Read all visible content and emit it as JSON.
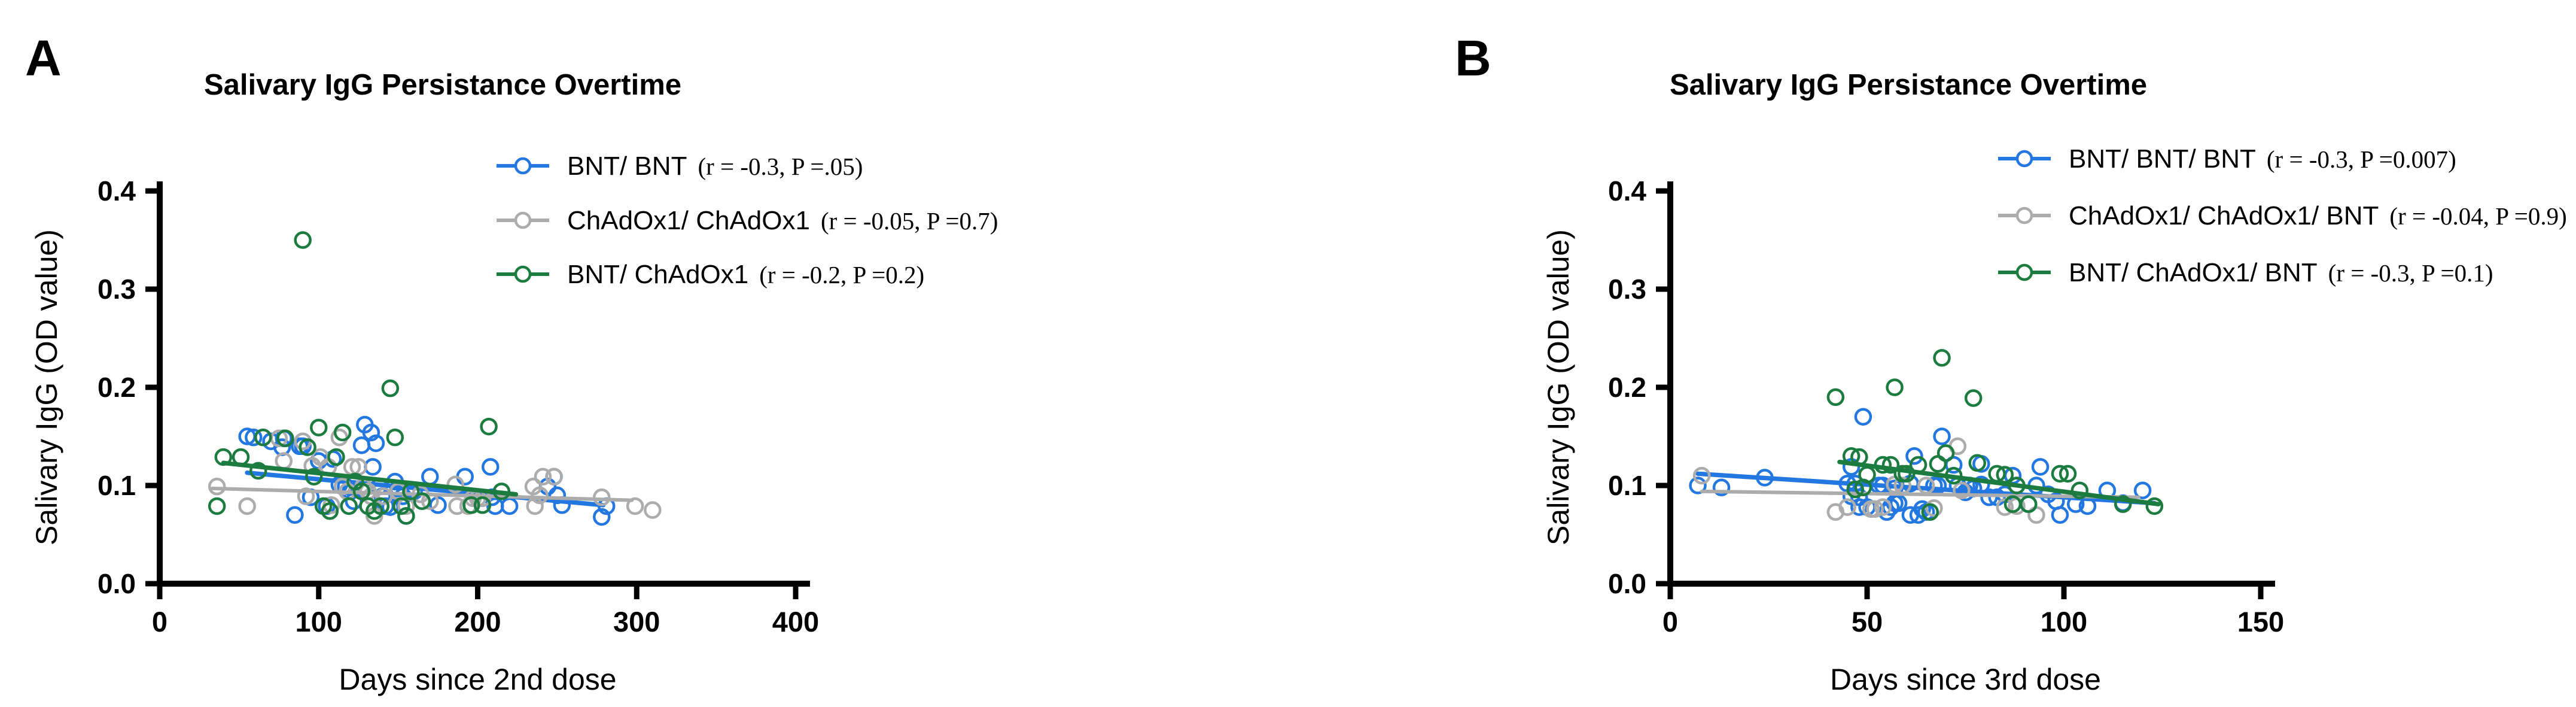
{
  "figure": {
    "background": "#ffffff",
    "text_color": "#000000",
    "axis_color": "#000000"
  },
  "chart_data": [
    {
      "type": "scatter",
      "panel_label": "A",
      "title": "Salivary IgG Persistance Overtime",
      "xlabel": "Days since 2nd dose",
      "ylabel": "Salivary IgG (OD value)",
      "xlim": [
        0,
        400
      ],
      "ylim": [
        0.0,
        0.4
      ],
      "xticks": {
        "values": [
          0,
          100,
          200,
          300,
          400
        ],
        "labels": [
          "0",
          "100",
          "200",
          "300",
          "400"
        ]
      },
      "yticks": {
        "values": [
          0.0,
          0.1,
          0.2,
          0.3,
          0.4
        ],
        "labels": [
          "0.0",
          "0.1",
          "0.2",
          "0.3",
          "0.4"
        ]
      },
      "grid": false,
      "legend_position": "upper-right",
      "series": [
        {
          "name": "BNT/ BNT",
          "stats": "(r = -0.3, P =.05)",
          "color": "#2277E0",
          "marker": "open-circle",
          "trend": [
            [
              55,
              0.113
            ],
            [
              279,
              0.08
            ]
          ],
          "points": [
            [
              55,
              0.15
            ],
            [
              59,
              0.149
            ],
            [
              70,
              0.145
            ],
            [
              77,
              0.139
            ],
            [
              78,
              0.148
            ],
            [
              85,
              0.07
            ],
            [
              88,
              0.14
            ],
            [
              90,
              0.14
            ],
            [
              95,
              0.088
            ],
            [
              100,
              0.125
            ],
            [
              105,
              0.079
            ],
            [
              109,
              0.127
            ],
            [
              113,
              0.101
            ],
            [
              117,
              0.099
            ],
            [
              120,
              0.094
            ],
            [
              122,
              0.084
            ],
            [
              127,
              0.141
            ],
            [
              129,
              0.162
            ],
            [
              133,
              0.154
            ],
            [
              134,
              0.119
            ],
            [
              136,
              0.143
            ],
            [
              138,
              0.099
            ],
            [
              140,
              0.089
            ],
            [
              142,
              0.079
            ],
            [
              145,
              0.078
            ],
            [
              148,
              0.104
            ],
            [
              150,
              0.097
            ],
            [
              153,
              0.089
            ],
            [
              155,
              0.069
            ],
            [
              160,
              0.094
            ],
            [
              170,
              0.109
            ],
            [
              175,
              0.08
            ],
            [
              192,
              0.109
            ],
            [
              208,
              0.119
            ],
            [
              209,
              0.088
            ],
            [
              211,
              0.079
            ],
            [
              220,
              0.079
            ],
            [
              244,
              0.099
            ],
            [
              248,
              0.109
            ],
            [
              250,
              0.09
            ],
            [
              253,
              0.08
            ],
            [
              278,
              0.068
            ],
            [
              281,
              0.079
            ]
          ]
        },
        {
          "name": "ChAdOx1/ ChAdOx1",
          "stats": "(r = -0.05, P =0.7)",
          "color": "#ACACAC",
          "marker": "open-circle",
          "trend": [
            [
              33,
              0.097
            ],
            [
              297,
              0.085
            ]
          ],
          "points": [
            [
              36,
              0.099
            ],
            [
              55,
              0.079
            ],
            [
              75,
              0.148
            ],
            [
              78,
              0.125
            ],
            [
              90,
              0.145
            ],
            [
              92,
              0.089
            ],
            [
              96,
              0.12
            ],
            [
              101,
              0.129
            ],
            [
              106,
              0.119
            ],
            [
              108,
              0.08
            ],
            [
              113,
              0.149
            ],
            [
              115,
              0.099
            ],
            [
              118,
              0.094
            ],
            [
              121,
              0.119
            ],
            [
              125,
              0.119
            ],
            [
              128,
              0.099
            ],
            [
              131,
              0.094
            ],
            [
              133,
              0.089
            ],
            [
              135,
              0.069
            ],
            [
              139,
              0.079
            ],
            [
              141,
              0.089
            ],
            [
              150,
              0.094
            ],
            [
              155,
              0.079
            ],
            [
              164,
              0.091
            ],
            [
              170,
              0.084
            ],
            [
              186,
              0.101
            ],
            [
              187,
              0.079
            ],
            [
              194,
              0.079
            ],
            [
              197,
              0.087
            ],
            [
              200,
              0.087
            ],
            [
              203,
              0.087
            ],
            [
              235,
              0.099
            ],
            [
              236,
              0.079
            ],
            [
              239,
              0.09
            ],
            [
              241,
              0.109
            ],
            [
              248,
              0.109
            ],
            [
              278,
              0.088
            ],
            [
              299,
              0.079
            ],
            [
              310,
              0.075
            ]
          ]
        },
        {
          "name": "BNT/ ChAdOx1",
          "stats": "(r = -0.2, P =0.2)",
          "color": "#1C7C40",
          "marker": "open-circle",
          "trend": [
            [
              40,
              0.123
            ],
            [
              224,
              0.091
            ]
          ],
          "points": [
            [
              36,
              0.079
            ],
            [
              40,
              0.129
            ],
            [
              51,
              0.129
            ],
            [
              62,
              0.115
            ],
            [
              65,
              0.149
            ],
            [
              79,
              0.148
            ],
            [
              90,
              0.35
            ],
            [
              93,
              0.139
            ],
            [
              97,
              0.109
            ],
            [
              100,
              0.159
            ],
            [
              103,
              0.079
            ],
            [
              107,
              0.074
            ],
            [
              111,
              0.129
            ],
            [
              115,
              0.154
            ],
            [
              119,
              0.079
            ],
            [
              123,
              0.104
            ],
            [
              127,
              0.094
            ],
            [
              131,
              0.079
            ],
            [
              135,
              0.074
            ],
            [
              139,
              0.079
            ],
            [
              145,
              0.199
            ],
            [
              148,
              0.149
            ],
            [
              152,
              0.079
            ],
            [
              155,
              0.069
            ],
            [
              158,
              0.094
            ],
            [
              165,
              0.084
            ],
            [
              196,
              0.08
            ],
            [
              203,
              0.08
            ],
            [
              207,
              0.16
            ],
            [
              215,
              0.094
            ]
          ]
        }
      ]
    },
    {
      "type": "scatter",
      "panel_label": "B",
      "title": "Salivary IgG Persistance Overtime",
      "xlabel": "Days since 3rd dose",
      "ylabel": "Salivary IgG (OD value)",
      "xlim": [
        0,
        150
      ],
      "ylim": [
        0.0,
        0.4
      ],
      "xticks": {
        "values": [
          0,
          50,
          100,
          150
        ],
        "labels": [
          "0",
          "50",
          "100",
          "150"
        ]
      },
      "yticks": {
        "values": [
          0.0,
          0.1,
          0.2,
          0.3,
          0.4
        ],
        "labels": [
          "0.0",
          "0.1",
          "0.2",
          "0.3",
          "0.4"
        ]
      },
      "grid": false,
      "legend_position": "upper-right",
      "series": [
        {
          "name": "BNT/ BNT/ BNT",
          "stats": "(r = -0.3, P =0.007)",
          "color": "#2277E0",
          "marker": "open-circle",
          "trend": [
            [
              7,
              0.112
            ],
            [
              123,
              0.082
            ]
          ],
          "points": [
            [
              7,
              0.1
            ],
            [
              13,
              0.098
            ],
            [
              24,
              0.108
            ],
            [
              45,
              0.102
            ],
            [
              46,
              0.119
            ],
            [
              46,
              0.089
            ],
            [
              47,
              0.102
            ],
            [
              48,
              0.088
            ],
            [
              48,
              0.078
            ],
            [
              49,
              0.17
            ],
            [
              50,
              0.078
            ],
            [
              53,
              0.1
            ],
            [
              54,
              0.1
            ],
            [
              55,
              0.073
            ],
            [
              56,
              0.078
            ],
            [
              57,
              0.097
            ],
            [
              57,
              0.082
            ],
            [
              58,
              0.082
            ],
            [
              61,
              0.102
            ],
            [
              61,
              0.07
            ],
            [
              62,
              0.13
            ],
            [
              63,
              0.07
            ],
            [
              64,
              0.076
            ],
            [
              65,
              0.073
            ],
            [
              67,
              0.1
            ],
            [
              68,
              0.1
            ],
            [
              69,
              0.15
            ],
            [
              72,
              0.121
            ],
            [
              73,
              0.1
            ],
            [
              75,
              0.093
            ],
            [
              76,
              0.1
            ],
            [
              77,
              0.097
            ],
            [
              79,
              0.122
            ],
            [
              79,
              0.101
            ],
            [
              81,
              0.088
            ],
            [
              83,
              0.088
            ],
            [
              85,
              0.091
            ],
            [
              87,
              0.11
            ],
            [
              88,
              0.1
            ],
            [
              91,
              0.081
            ],
            [
              93,
              0.1
            ],
            [
              94,
              0.119
            ],
            [
              96,
              0.091
            ],
            [
              98,
              0.084
            ],
            [
              99,
              0.07
            ],
            [
              103,
              0.081
            ],
            [
              106,
              0.079
            ],
            [
              111,
              0.095
            ],
            [
              115,
              0.082
            ],
            [
              120,
              0.095
            ]
          ]
        },
        {
          "name": "ChAdOx1/ ChAdOx1/ BNT",
          "stats": "(r = -0.04, P =0.9)",
          "color": "#ACACAC",
          "marker": "open-circle",
          "trend": [
            [
              8,
              0.094
            ],
            [
              119,
              0.088
            ]
          ],
          "points": [
            [
              8,
              0.11
            ],
            [
              42,
              0.073
            ],
            [
              45,
              0.078
            ],
            [
              51,
              0.076
            ],
            [
              52,
              0.076
            ],
            [
              54,
              0.078
            ],
            [
              57,
              0.101
            ],
            [
              59,
              0.1
            ],
            [
              65,
              0.1
            ],
            [
              67,
              0.077
            ],
            [
              73,
              0.14
            ],
            [
              74,
              0.095
            ],
            [
              85,
              0.078
            ],
            [
              88,
              0.079
            ],
            [
              93,
              0.07
            ]
          ]
        },
        {
          "name": "BNT/ ChAdOx1/ BNT",
          "stats": "(r = -0.3, P =0.1)",
          "color": "#1C7C40",
          "marker": "open-circle",
          "trend": [
            [
              43,
              0.124
            ],
            [
              124,
              0.081
            ]
          ],
          "points": [
            [
              42,
              0.19
            ],
            [
              46,
              0.13
            ],
            [
              47,
              0.096
            ],
            [
              48,
              0.129
            ],
            [
              49,
              0.098
            ],
            [
              50,
              0.111
            ],
            [
              54,
              0.121
            ],
            [
              56,
              0.121
            ],
            [
              57,
              0.2
            ],
            [
              59,
              0.112
            ],
            [
              60,
              0.112
            ],
            [
              63,
              0.121
            ],
            [
              66,
              0.073
            ],
            [
              68,
              0.122
            ],
            [
              69,
              0.23
            ],
            [
              70,
              0.133
            ],
            [
              72,
              0.11
            ],
            [
              77,
              0.189
            ],
            [
              78,
              0.123
            ],
            [
              83,
              0.112
            ],
            [
              85,
              0.111
            ],
            [
              87,
              0.081
            ],
            [
              88,
              0.1
            ],
            [
              91,
              0.081
            ],
            [
              99,
              0.112
            ],
            [
              101,
              0.112
            ],
            [
              104,
              0.095
            ],
            [
              115,
              0.081
            ],
            [
              123,
              0.079
            ]
          ]
        }
      ]
    }
  ]
}
